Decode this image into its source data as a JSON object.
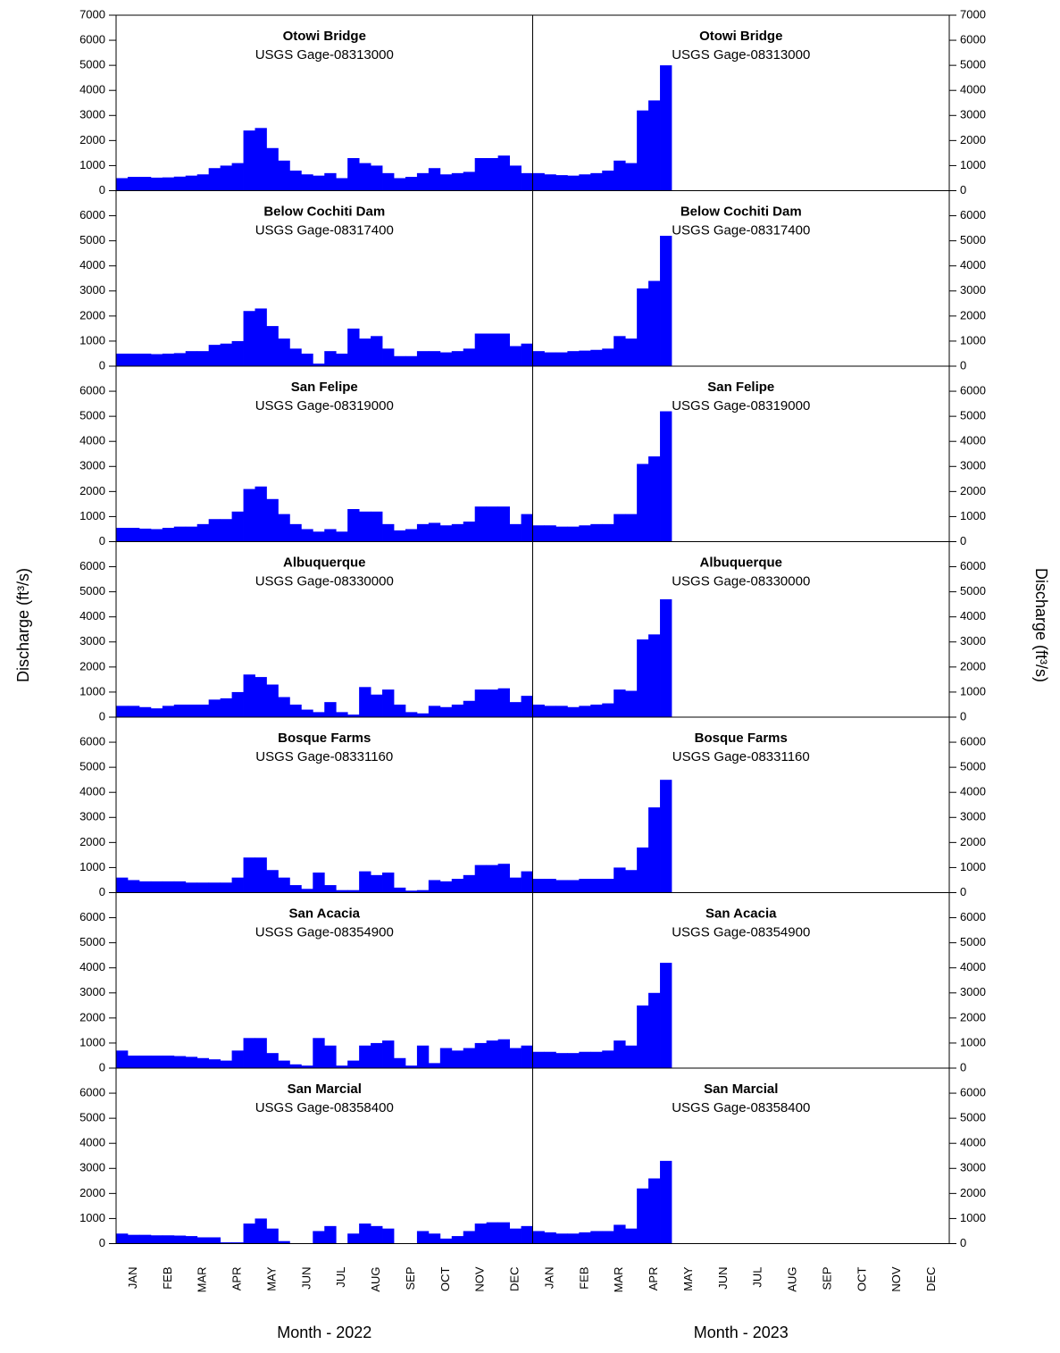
{
  "chart_data": [
    {
      "type": "bar",
      "title": "Otowi Bridge",
      "subtitle": "USGS Gage-08313000",
      "color": "#0000ff",
      "ylim": [
        0,
        7000
      ],
      "yticks": [
        0,
        1000,
        2000,
        3000,
        4000,
        5000,
        6000,
        7000
      ],
      "ylabel": "Discharge (ft³/s)",
      "values": [
        500,
        550,
        550,
        520,
        530,
        560,
        600,
        650,
        900,
        1000,
        1100,
        2400,
        2500,
        1700,
        1200,
        800,
        650,
        600,
        700,
        500,
        1300,
        1100,
        1000,
        700,
        500,
        550,
        700,
        900,
        650,
        700,
        750,
        1300,
        1300,
        1400,
        1000,
        700,
        700,
        650,
        620,
        600,
        650,
        700,
        800,
        1200,
        1100,
        3200,
        3600,
        5000,
        null,
        null,
        null,
        null,
        null,
        null,
        null,
        null,
        null,
        null,
        null,
        null,
        null,
        null,
        null,
        null,
        null,
        null,
        null,
        null,
        null,
        null,
        null,
        null
      ]
    },
    {
      "type": "bar",
      "title": "Below Cochiti Dam",
      "subtitle": "USGS Gage-08317400",
      "color": "#0000ff",
      "ylim": [
        0,
        7000
      ],
      "yticks": [
        0,
        1000,
        2000,
        3000,
        4000,
        5000,
        6000
      ],
      "values": [
        500,
        500,
        500,
        480,
        500,
        520,
        600,
        600,
        850,
        900,
        1000,
        2200,
        2300,
        1600,
        1100,
        700,
        500,
        100,
        600,
        500,
        1500,
        1100,
        1200,
        700,
        400,
        400,
        600,
        600,
        550,
        600,
        700,
        1300,
        1300,
        1300,
        800,
        900,
        600,
        550,
        550,
        600,
        620,
        650,
        700,
        1200,
        1100,
        3100,
        3400,
        5200,
        null,
        null,
        null,
        null,
        null,
        null,
        null,
        null,
        null,
        null,
        null,
        null,
        null,
        null,
        null,
        null,
        null,
        null,
        null,
        null,
        null,
        null,
        null,
        null
      ]
    },
    {
      "type": "bar",
      "title": "San Felipe",
      "subtitle": "USGS Gage-08319000",
      "color": "#0000ff",
      "ylim": [
        0,
        7000
      ],
      "yticks": [
        0,
        1000,
        2000,
        3000,
        4000,
        5000,
        6000
      ],
      "values": [
        550,
        550,
        520,
        500,
        550,
        600,
        600,
        700,
        900,
        900,
        1200,
        2100,
        2200,
        1700,
        1100,
        700,
        500,
        400,
        500,
        400,
        1300,
        1200,
        1200,
        700,
        450,
        500,
        700,
        750,
        650,
        700,
        800,
        1400,
        1400,
        1400,
        700,
        1100,
        650,
        650,
        600,
        600,
        650,
        700,
        700,
        1100,
        1100,
        3100,
        3400,
        5200,
        null,
        null,
        null,
        null,
        null,
        null,
        null,
        null,
        null,
        null,
        null,
        null,
        null,
        null,
        null,
        null,
        null,
        null,
        null,
        null,
        null,
        null,
        null,
        null
      ]
    },
    {
      "type": "bar",
      "title": "Albuquerque",
      "subtitle": "USGS Gage-08330000",
      "color": "#0000ff",
      "ylim": [
        0,
        7000
      ],
      "yticks": [
        0,
        1000,
        2000,
        3000,
        4000,
        5000,
        6000
      ],
      "values": [
        450,
        450,
        400,
        350,
        450,
        500,
        500,
        500,
        700,
        750,
        1000,
        1700,
        1600,
        1300,
        800,
        500,
        300,
        200,
        600,
        200,
        100,
        1200,
        900,
        1100,
        500,
        200,
        150,
        450,
        400,
        500,
        650,
        1100,
        1100,
        1150,
        600,
        850,
        500,
        450,
        450,
        400,
        450,
        500,
        550,
        1100,
        1050,
        3100,
        3300,
        4700,
        null,
        null,
        null,
        null,
        null,
        null,
        null,
        null,
        null,
        null,
        null,
        null,
        null,
        null,
        null,
        null,
        null,
        null,
        null,
        null,
        null,
        null,
        null,
        null
      ]
    },
    {
      "type": "bar",
      "title": "Bosque Farms",
      "subtitle": "USGS Gage-08331160",
      "color": "#0000ff",
      "ylim": [
        0,
        7000
      ],
      "yticks": [
        0,
        1000,
        2000,
        3000,
        4000,
        5000,
        6000
      ],
      "values": [
        600,
        500,
        450,
        450,
        450,
        450,
        400,
        400,
        400,
        400,
        600,
        1400,
        1400,
        900,
        600,
        300,
        150,
        800,
        300,
        100,
        100,
        850,
        700,
        800,
        200,
        80,
        100,
        500,
        450,
        550,
        700,
        1100,
        1100,
        1150,
        600,
        850,
        550,
        550,
        500,
        500,
        550,
        550,
        550,
        1000,
        900,
        1800,
        3400,
        4500,
        null,
        null,
        null,
        null,
        null,
        null,
        null,
        null,
        null,
        null,
        null,
        null,
        null,
        null,
        null,
        null,
        null,
        null,
        null,
        null,
        null,
        null,
        null,
        null
      ]
    },
    {
      "type": "bar",
      "title": "San Acacia",
      "subtitle": "USGS Gage-08354900",
      "color": "#0000ff",
      "ylim": [
        0,
        7000
      ],
      "yticks": [
        0,
        1000,
        2000,
        3000,
        4000,
        5000,
        6000
      ],
      "values": [
        700,
        500,
        500,
        500,
        500,
        480,
        450,
        400,
        350,
        300,
        700,
        1200,
        1200,
        600,
        300,
        150,
        100,
        1200,
        900,
        100,
        300,
        900,
        1000,
        1100,
        400,
        100,
        900,
        200,
        800,
        700,
        800,
        1000,
        1100,
        1150,
        800,
        900,
        650,
        650,
        600,
        600,
        650,
        650,
        700,
        1100,
        900,
        2500,
        3000,
        4200,
        null,
        null,
        null,
        null,
        null,
        null,
        null,
        null,
        null,
        null,
        null,
        null,
        null,
        null,
        null,
        null,
        null,
        null,
        null,
        null,
        null,
        null,
        null,
        null
      ]
    },
    {
      "type": "bar",
      "title": "San Marcial",
      "subtitle": "USGS Gage-08358400",
      "color": "#0000ff",
      "ylim": [
        0,
        7000
      ],
      "yticks": [
        0,
        1000,
        2000,
        3000,
        4000,
        5000,
        6000
      ],
      "xlabels": [
        "Month - 2022",
        "Month - 2023"
      ],
      "categories": [
        null,
        "JAN",
        null,
        null,
        "FEB",
        null,
        null,
        "MAR",
        null,
        null,
        "APR",
        null,
        null,
        "MAY",
        null,
        null,
        "JUN",
        null,
        null,
        "JUL",
        null,
        null,
        "AUG",
        null,
        null,
        "SEP",
        null,
        null,
        "OCT",
        null,
        null,
        "NOV",
        null,
        null,
        "DEC",
        null,
        null,
        "JAN",
        null,
        null,
        "FEB",
        null,
        null,
        "MAR",
        null,
        null,
        "APR",
        null,
        null,
        "MAY",
        null,
        null,
        "JUN",
        null,
        null,
        "JUL",
        null,
        null,
        "AUG",
        null,
        null,
        "SEP",
        null,
        null,
        "OCT",
        null,
        null,
        "NOV",
        null,
        null,
        "DEC",
        null
      ],
      "values": [
        400,
        350,
        350,
        330,
        330,
        320,
        300,
        250,
        250,
        50,
        50,
        800,
        1000,
        600,
        100,
        0,
        0,
        500,
        700,
        0,
        400,
        800,
        700,
        600,
        0,
        0,
        500,
        400,
        200,
        300,
        500,
        800,
        850,
        850,
        600,
        700,
        500,
        450,
        400,
        400,
        450,
        500,
        500,
        750,
        600,
        2200,
        2600,
        3300,
        null,
        null,
        null,
        null,
        null,
        null,
        null,
        null,
        null,
        null,
        null,
        null,
        null,
        null,
        null,
        null,
        null,
        null,
        null,
        null,
        null,
        null,
        null,
        null
      ]
    }
  ]
}
